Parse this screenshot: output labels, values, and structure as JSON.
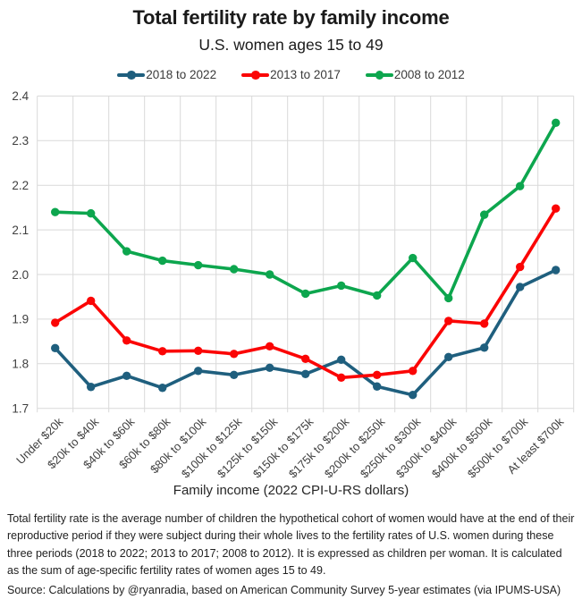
{
  "chart_data": {
    "type": "line",
    "title": "Total fertility rate by family income",
    "subtitle": "U.S. women ages 15 to 49",
    "xlabel": "Family income (2022 CPI-U-RS dollars)",
    "ylabel": "",
    "ylim": [
      1.7,
      2.4
    ],
    "ytick_step": 0.1,
    "grid": true,
    "legend_position": "top",
    "categories": [
      "Under $20k",
      "$20k to $40k",
      "$40k to $60k",
      "$60k to $80k",
      "$80k to $100k",
      "$100k to $125k",
      "$125k to $150k",
      "$150k to $175k",
      "$175k to $200k",
      "$200k to $250k",
      "$250k to $300k",
      "$300k to $400k",
      "$400k to $500k",
      "$500k to $700k",
      "At least $700k"
    ],
    "series": [
      {
        "name": "2018 to 2022",
        "color": "#1f5f7e",
        "values": [
          1.835,
          1.748,
          1.773,
          1.746,
          1.784,
          1.775,
          1.791,
          1.777,
          1.809,
          1.749,
          1.73,
          1.815,
          1.836,
          1.972,
          2.01
        ]
      },
      {
        "name": "2013 to 2017",
        "color": "#fb0505",
        "values": [
          1.892,
          1.941,
          1.852,
          1.828,
          1.829,
          1.822,
          1.839,
          1.811,
          1.769,
          1.775,
          1.784,
          1.896,
          1.89,
          2.017,
          2.148
        ]
      },
      {
        "name": "2008 to 2012",
        "color": "#0da64e",
        "values": [
          2.14,
          2.137,
          2.052,
          2.031,
          2.021,
          2.012,
          2.0,
          1.957,
          1.975,
          1.953,
          2.037,
          1.947,
          2.134,
          2.198,
          2.34
        ]
      }
    ]
  },
  "notes": {
    "description": "Total fertility rate is the average number of children the hypothetical cohort of women would have at the end of their reproductive period if they were subject during their whole lives to the fertility rates of U.S. women during these three periods (2018 to 2022; 2013 to 2017; 2008 to 2012). It is expressed as children per woman. It is calculated as the sum of age-specific fertility rates of women ages 15 to 49.",
    "source": "Source: Calculations by @ryanradia, based on American Community Survey 5-year estimates (via IPUMS-USA)"
  },
  "colors": {
    "gridline": "#d9d9d9",
    "tick_label": "#3f3f3f",
    "title_text": "#1a1a1a"
  }
}
